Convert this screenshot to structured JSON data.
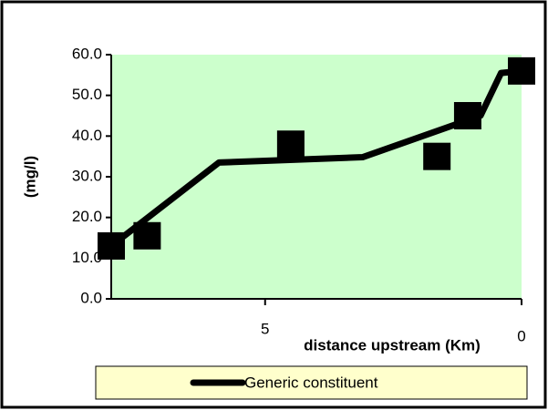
{
  "chart_data": {
    "type": "line",
    "xlabel": "distance upstream (Km)",
    "ylabel": "(mg/l)",
    "xlim": [
      8,
      0
    ],
    "xticks": [
      5,
      0
    ],
    "ylim": [
      0,
      60
    ],
    "yticks": [
      {
        "value": 0,
        "label": "0.0"
      },
      {
        "value": 10,
        "label": "10.0"
      },
      {
        "value": 20,
        "label": "20.0"
      },
      {
        "value": 30,
        "label": "30.0"
      },
      {
        "value": 40,
        "label": "40.0"
      },
      {
        "value": 50,
        "label": "50.0"
      },
      {
        "value": 60,
        "label": "60.0"
      }
    ],
    "plot_background": "#ccffcc",
    "legend_position": "bottom",
    "series": [
      {
        "name": "Generic constituent",
        "color": "#000000",
        "mode": "line",
        "x": [
          8,
          5.9,
          3.1,
          0.8,
          0.4,
          0
        ],
        "values": [
          13,
          33.5,
          34.8,
          45,
          55.5,
          56
        ]
      },
      {
        "color": "#000000",
        "mode": "markers",
        "x": [
          8,
          7.3,
          4.5,
          1.65,
          1.05,
          0
        ],
        "values": [
          13,
          15.5,
          38,
          35,
          45,
          56
        ]
      }
    ]
  }
}
